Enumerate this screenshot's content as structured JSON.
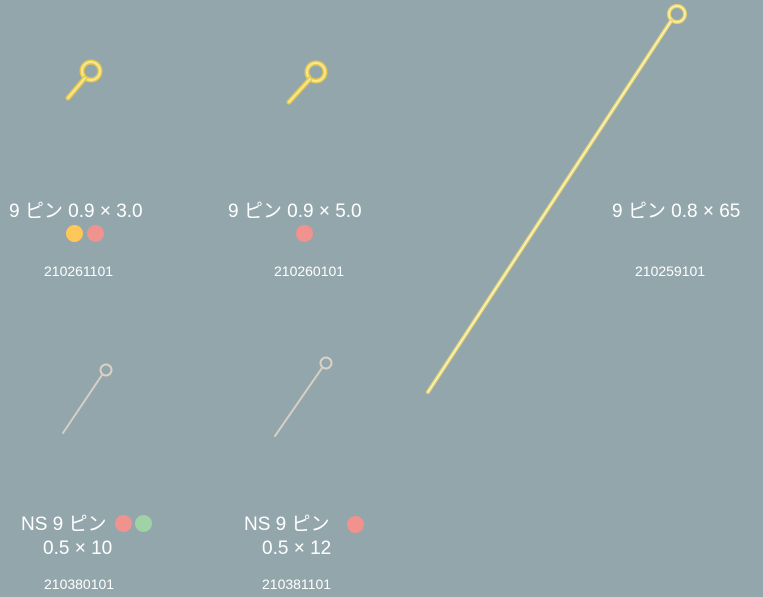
{
  "colors": {
    "background": "#93a6ac",
    "gold": "#f2df77",
    "silver": "#cfc7bd",
    "dot_yellow": "#ffc65a",
    "dot_red": "#f0928d",
    "dot_green": "#9fd2a4"
  },
  "products": [
    {
      "name": "9 ピン 0.9 × 3.0",
      "code": "210261101",
      "dots": [
        "yellow",
        "red"
      ]
    },
    {
      "name": "9 ピン 0.9 × 5.0",
      "code": "210260101",
      "dots": [
        "red"
      ]
    },
    {
      "name": "9 ピン 0.8 × 65",
      "code": "210259101",
      "dots": []
    },
    {
      "name_line1": "NS 9 ピン",
      "name_line2": "0.5 × 10",
      "code": "210380101",
      "dots": [
        "red",
        "green"
      ]
    },
    {
      "name_line1": "NS 9 ピン",
      "name_line2": "0.5 × 12",
      "code": "210381101",
      "dots": [
        "red"
      ]
    }
  ]
}
